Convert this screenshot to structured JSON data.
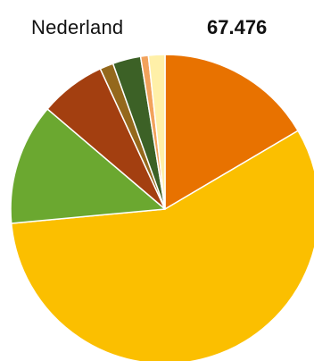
{
  "header": {
    "region": "Nederland",
    "total": "67.476"
  },
  "chart_data": {
    "type": "pie",
    "title": "Nederland",
    "total": "67.476",
    "legend": "none",
    "start_angle_deg": 0,
    "direction": "clockwise",
    "slices": [
      {
        "value": 16.3,
        "color": "#E87200"
      },
      {
        "value": 56.2,
        "color": "#FBBF00"
      },
      {
        "value": 12.5,
        "color": "#6BA830"
      },
      {
        "value": 6.8,
        "color": "#A33F10"
      },
      {
        "value": 1.4,
        "color": "#94681C"
      },
      {
        "value": 2.9,
        "color": "#3C6126"
      },
      {
        "value": 0.8,
        "color": "#F2A25C"
      },
      {
        "value": 1.7,
        "color": "#FFF0A8"
      }
    ]
  }
}
